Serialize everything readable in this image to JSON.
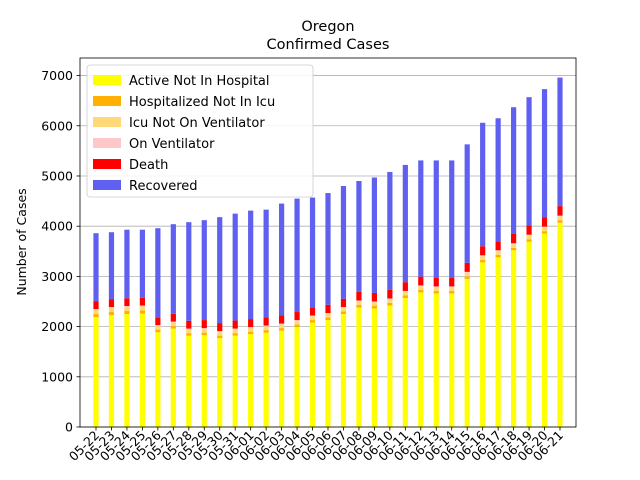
{
  "chart_data": {
    "type": "bar",
    "stacked": true,
    "title": "Oregon",
    "subtitle": "Confirmed Cases",
    "xlabel": "",
    "ylabel": "Number of Cases",
    "ylim": [
      0,
      7350
    ],
    "yticks": [
      0,
      1000,
      2000,
      3000,
      4000,
      5000,
      6000,
      7000
    ],
    "grid": "horizontal",
    "legend_position": "top-left",
    "categories": [
      "05-22",
      "05-23",
      "05-24",
      "05-25",
      "05-26",
      "05-27",
      "05-28",
      "05-29",
      "05-30",
      "05-31",
      "06-01",
      "06-02",
      "06-03",
      "06-04",
      "06-05",
      "06-06",
      "06-07",
      "06-08",
      "06-09",
      "06-10",
      "06-11",
      "06-12",
      "06-13",
      "06-14",
      "06-15",
      "06-16",
      "06-17",
      "06-18",
      "06-19",
      "06-20",
      "06-21"
    ],
    "series": [
      {
        "name": "Active Not In Hospital",
        "color": "#ffff00",
        "values": [
          2190,
          2230,
          2250,
          2260,
          1890,
          1960,
          1820,
          1830,
          1770,
          1820,
          1850,
          1880,
          1920,
          1990,
          2080,
          2130,
          2250,
          2380,
          2360,
          2420,
          2570,
          2680,
          2660,
          2660,
          2950,
          3280,
          3380,
          3520,
          3690,
          3850,
          4070
        ]
      },
      {
        "name": "Hospitalized Not In Icu",
        "color": "#ffb000",
        "values": [
          60,
          60,
          60,
          60,
          50,
          50,
          50,
          50,
          50,
          50,
          50,
          50,
          50,
          50,
          50,
          50,
          50,
          50,
          50,
          50,
          50,
          50,
          50,
          50,
          50,
          50,
          50,
          50,
          50,
          50,
          50
        ]
      },
      {
        "name": "Icu Not On Ventilator",
        "color": "#ffd978",
        "values": [
          80,
          80,
          80,
          80,
          70,
          70,
          70,
          70,
          70,
          70,
          70,
          70,
          70,
          70,
          70,
          70,
          70,
          70,
          70,
          70,
          70,
          70,
          70,
          70,
          70,
          70,
          70,
          70,
          70,
          70,
          70
        ]
      },
      {
        "name": "On Ventilator",
        "color": "#ffc8c8",
        "values": [
          20,
          20,
          20,
          20,
          20,
          20,
          20,
          20,
          20,
          20,
          20,
          20,
          20,
          20,
          20,
          20,
          20,
          20,
          20,
          20,
          20,
          20,
          20,
          20,
          20,
          20,
          20,
          20,
          20,
          20,
          20
        ]
      },
      {
        "name": "Death",
        "color": "#ff0000",
        "values": [
          150,
          150,
          155,
          155,
          155,
          155,
          155,
          160,
          160,
          160,
          160,
          160,
          160,
          160,
          165,
          165,
          165,
          170,
          170,
          170,
          175,
          175,
          175,
          175,
          180,
          180,
          180,
          185,
          185,
          190,
          190
        ]
      },
      {
        "name": "Recovered",
        "color": "#6060f0",
        "values": [
          1360,
          1340,
          1365,
          1355,
          1775,
          1785,
          1965,
          1990,
          2110,
          2130,
          2160,
          2150,
          2230,
          2260,
          2185,
          2225,
          2245,
          2210,
          2300,
          2350,
          2335,
          2315,
          2335,
          2335,
          2360,
          2460,
          2450,
          2525,
          2555,
          2550,
          2560
        ]
      }
    ]
  }
}
